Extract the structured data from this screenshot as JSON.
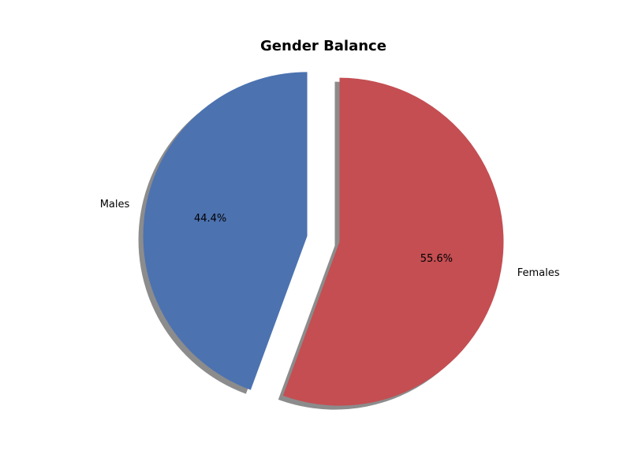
{
  "chart_data": {
    "type": "pie",
    "title": "Gender Balance",
    "categories": [
      "Males",
      "Females"
    ],
    "values": [
      44.4,
      55.6
    ],
    "percent_labels": [
      "44.4%",
      "55.6%"
    ],
    "colors": [
      "#4c72b0",
      "#c44e52"
    ],
    "shadow": true,
    "exploded": [
      "Males",
      "Females"
    ]
  }
}
